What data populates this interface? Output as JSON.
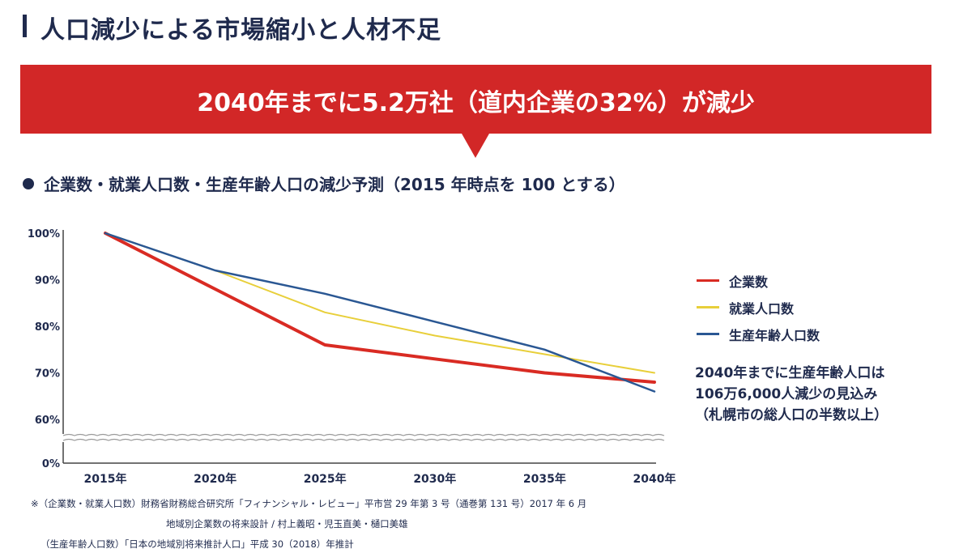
{
  "page": {
    "title": "人口減少による市場縮小と人材不足",
    "banner": "2040年までに5.2万社（道内企業の32%）が減少",
    "chart_heading": "企業数・就業人口数・生産年齢人口の減少予測（2015 年時点を 100 とする）"
  },
  "note": {
    "line1": "2040年までに生産年齢人口は",
    "line2": "106万6,000人減少の見込み",
    "line3": "（札幌市の総人口の半数以上）"
  },
  "source": {
    "line1": "※（企業数・就業人口数）財務省財務総合研究所「フィナンシャル・レビュー」平市営 29 年第 3 号（通巻第 131 号）2017 年 6 月",
    "line2": "地域別企業数の将来設計 / 村上義昭・児玉直美・樋口美雄",
    "line3": "（生産年齢人口数）「日本の地域別将来推計人口」平成 30（2018）年推計"
  },
  "colors": {
    "title": "#1f2a4d",
    "banner": "#d22727",
    "axis": "#444444"
  },
  "chart_data": {
    "type": "line",
    "title": "企業数・就業人口数・生産年齢人口の減少予測（2015 年時点を 100 とする）",
    "x": [
      2015,
      2020,
      2025,
      2030,
      2035,
      2040
    ],
    "categories": [
      "2015年",
      "2020年",
      "2025年",
      "2030年",
      "2035年",
      "2040年"
    ],
    "y_ticks": [
      "0%",
      "60%",
      "70%",
      "80%",
      "90%",
      "100%"
    ],
    "ylim": [
      0,
      100
    ],
    "axis_break": [
      0,
      60
    ],
    "xlabel": "",
    "ylabel": "",
    "legend_position": "right",
    "series": [
      {
        "name": "企業数",
        "color": "#d92b23",
        "width": 4,
        "values": [
          100,
          88,
          76,
          73,
          70,
          68
        ]
      },
      {
        "name": "就業人口数",
        "color": "#e8cf3a",
        "width": 2,
        "values": [
          100,
          92,
          83,
          78,
          74,
          70
        ]
      },
      {
        "name": "生産年齢人口数",
        "color": "#2a5793",
        "width": 2.5,
        "values": [
          100,
          92,
          87,
          81,
          75,
          66
        ]
      }
    ]
  }
}
